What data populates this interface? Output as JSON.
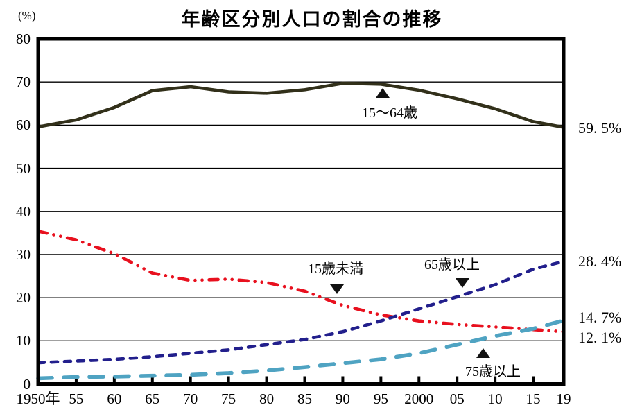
{
  "title": "年齢区分別人口の割合の推移",
  "y_axis": {
    "unit_label": "(%)",
    "tick_labels": [
      "80",
      "70",
      "60",
      "50",
      "40",
      "30",
      "20",
      "10",
      "0"
    ],
    "tick_values": [
      80,
      70,
      60,
      50,
      40,
      30,
      20,
      10,
      0
    ]
  },
  "x_axis": {
    "tick_labels": [
      "1950年",
      "55",
      "60",
      "65",
      "70",
      "75",
      "80",
      "85",
      "90",
      "95",
      "2000",
      "05",
      "10",
      "15",
      "19"
    ],
    "tick_years": [
      1950,
      1955,
      1960,
      1965,
      1970,
      1975,
      1980,
      1985,
      1990,
      1995,
      2000,
      2005,
      2010,
      2015,
      2019
    ]
  },
  "annotations": [
    {
      "text": "15〜64歳",
      "pointer": "up"
    },
    {
      "text": "15歳未満",
      "pointer": "down"
    },
    {
      "text": "65歳以上",
      "pointer": "down"
    },
    {
      "text": "75歳以上",
      "pointer": "up"
    }
  ],
  "end_labels": [
    {
      "series": "15〜64歳",
      "text": "59. 5%"
    },
    {
      "series": "65歳以上",
      "text": "28. 4%"
    },
    {
      "series": "75歳以上",
      "text": "14. 7%"
    },
    {
      "series": "15歳未満",
      "text": "12. 1%"
    }
  ],
  "chart_data": {
    "type": "line",
    "title": "年齢区分別人口の割合の推移",
    "xlabel": "",
    "ylabel": "(%)",
    "ylim": [
      0,
      80
    ],
    "grid": "horizontal",
    "legend": "inline-annotations",
    "x": [
      1950,
      1955,
      1960,
      1965,
      1970,
      1975,
      1980,
      1985,
      1990,
      1995,
      2000,
      2005,
      2010,
      2015,
      2019
    ],
    "series": [
      {
        "name": "15〜64歳",
        "style": "solid",
        "color": "#32301a",
        "end_value_label": "59. 5%",
        "values": [
          59.6,
          61.2,
          64.1,
          68.0,
          68.9,
          67.7,
          67.4,
          68.2,
          69.7,
          69.5,
          68.1,
          66.1,
          63.8,
          60.8,
          59.5
        ]
      },
      {
        "name": "15歳未満",
        "style": "dash-dot-dot",
        "color": "#e8101e",
        "end_value_label": "12. 1%",
        "values": [
          35.4,
          33.4,
          30.2,
          25.7,
          24.0,
          24.3,
          23.5,
          21.5,
          18.2,
          16.0,
          14.6,
          13.8,
          13.2,
          12.6,
          12.1
        ]
      },
      {
        "name": "65歳以上",
        "style": "dashed",
        "color": "#221f8c",
        "end_value_label": "28. 4%",
        "values": [
          4.9,
          5.3,
          5.7,
          6.3,
          7.1,
          7.9,
          9.1,
          10.3,
          12.1,
          14.6,
          17.4,
          20.2,
          23.0,
          26.6,
          28.4
        ]
      },
      {
        "name": "75歳以上",
        "style": "long-dash",
        "color": "#4fa3c2",
        "end_value_label": "14. 7%",
        "values": [
          1.3,
          1.6,
          1.7,
          1.9,
          2.1,
          2.5,
          3.1,
          3.9,
          4.8,
          5.7,
          7.1,
          9.1,
          11.1,
          12.8,
          14.7
        ]
      }
    ],
    "axis_color": "#000000"
  }
}
